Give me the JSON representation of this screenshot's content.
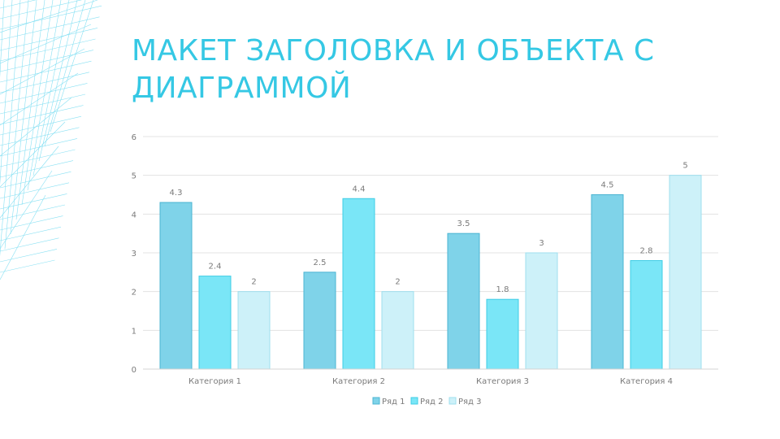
{
  "slide": {
    "title": "МАКЕТ ЗАГОЛОВКА И ОБЪЕКТА С ДИАГРАММОЙ"
  },
  "colors": {
    "title": "#35c8e4",
    "series": [
      "#7fd3e9",
      "#7ae6f7",
      "#cdf1f9"
    ],
    "series_stroke": [
      "#4bb4d2",
      "#3fcde6",
      "#9fdfee"
    ],
    "grid": "#e3e3e3",
    "decoration": "#5fd6ef"
  },
  "chart_data": {
    "type": "bar",
    "categories": [
      "Категория 1",
      "Категория 2",
      "Категория 3",
      "Категория 4"
    ],
    "series": [
      {
        "name": "Ряд 1",
        "values": [
          4.3,
          2.5,
          3.5,
          4.5
        ]
      },
      {
        "name": "Ряд 2",
        "values": [
          2.4,
          4.4,
          1.8,
          2.8
        ]
      },
      {
        "name": "Ряд 3",
        "values": [
          2,
          2,
          3,
          5
        ]
      }
    ],
    "ylim": [
      0,
      6
    ],
    "yticks": [
      0,
      1,
      2,
      3,
      4,
      5,
      6
    ],
    "data_labels": [
      [
        "4.3",
        "2.5",
        "3.5",
        "4.5"
      ],
      [
        "2.4",
        "4.4",
        "1.8",
        "2.8"
      ],
      [
        "2",
        "2",
        "3",
        "5"
      ]
    ],
    "grid": true,
    "legend_position": "bottom"
  }
}
